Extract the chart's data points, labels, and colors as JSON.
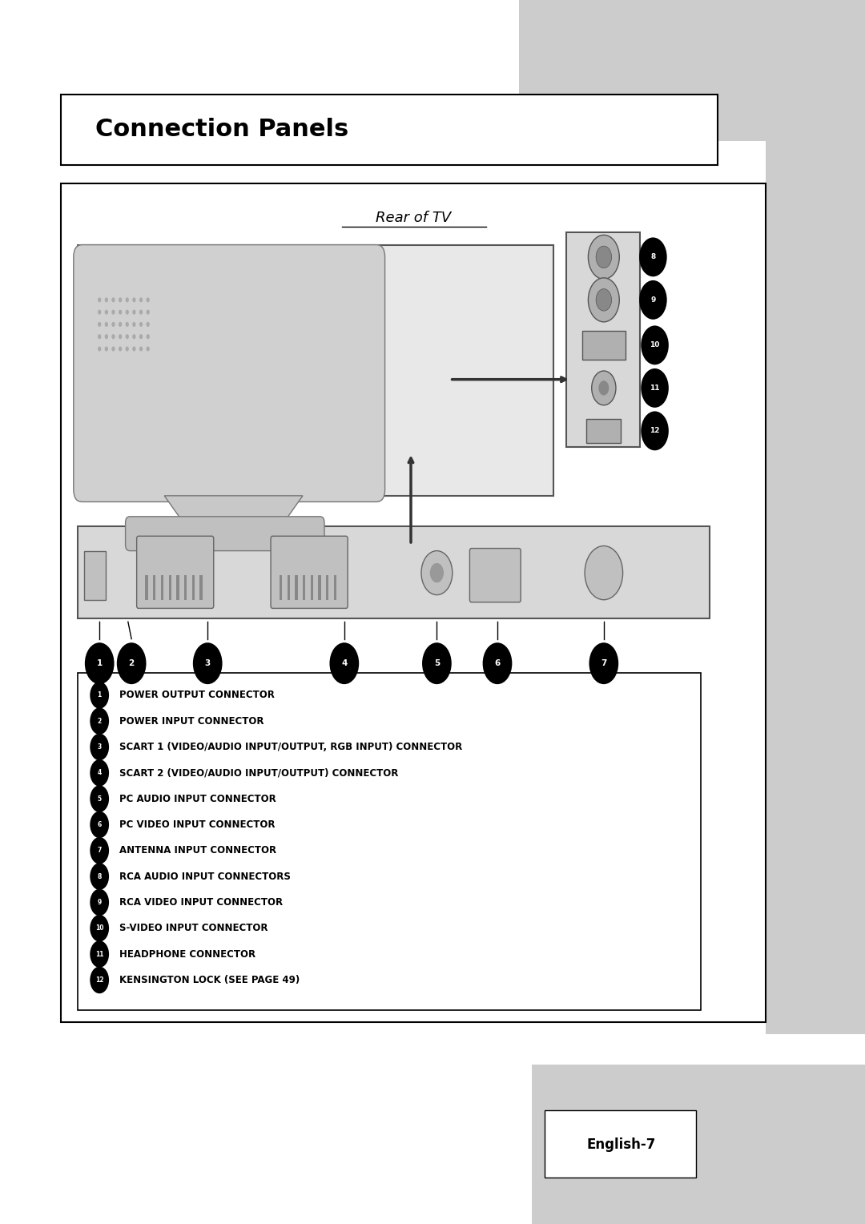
{
  "title": "Connection Panels",
  "subtitle": "Rear of TV",
  "page_label": "English-7",
  "background_color": "#ffffff",
  "gray_color": "#cccccc",
  "legend_items": [
    {
      "num": "1",
      "text": "POWER OUTPUT CONNECTOR"
    },
    {
      "num": "2",
      "text": "POWER INPUT CONNECTOR"
    },
    {
      "num": "3",
      "text": "SCART 1 (VIDEO/AUDIO INPUT/OUTPUT, RGB INPUT) CONNECTOR"
    },
    {
      "num": "4",
      "text": "SCART 2 (VIDEO/AUDIO INPUT/OUTPUT) CONNECTOR"
    },
    {
      "num": "5",
      "text": "PC AUDIO INPUT CONNECTOR"
    },
    {
      "num": "6",
      "text": "PC VIDEO INPUT CONNECTOR"
    },
    {
      "num": "7",
      "text": "ANTENNA INPUT CONNECTOR"
    },
    {
      "num": "8",
      "text": "RCA AUDIO INPUT CONNECTORS"
    },
    {
      "num": "9",
      "text": "RCA VIDEO INPUT CONNECTOR"
    },
    {
      "num": "10",
      "text": "S-VIDEO INPUT CONNECTOR"
    },
    {
      "num": "11",
      "text": "HEADPHONE CONNECTOR"
    },
    {
      "num": "12",
      "text": "KENSINGTON LOCK (SEE PAGE 49)"
    }
  ]
}
